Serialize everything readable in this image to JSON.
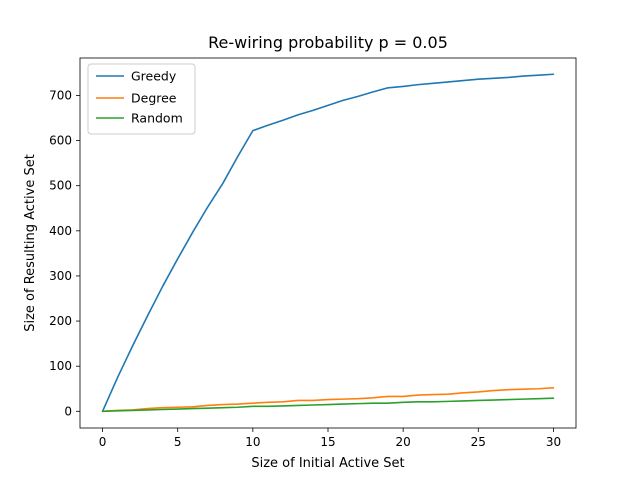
{
  "chart_data": {
    "type": "line",
    "title": "Re-wiring probability p = 0.05",
    "xlabel": "Size of Initial Active Set",
    "ylabel": "Size of Resulting Active Set",
    "xlim": [
      -1.5,
      31.5
    ],
    "ylim": [
      -37,
      783
    ],
    "xticks": [
      0,
      5,
      10,
      15,
      20,
      25,
      30
    ],
    "yticks": [
      0,
      100,
      200,
      300,
      400,
      500,
      600,
      700
    ],
    "grid": false,
    "legend_position": "top-left",
    "x": [
      0,
      1,
      2,
      3,
      4,
      5,
      6,
      7,
      8,
      9,
      10,
      11,
      12,
      13,
      14,
      15,
      16,
      17,
      18,
      19,
      20,
      21,
      22,
      23,
      24,
      25,
      26,
      27,
      28,
      29,
      30
    ],
    "series": [
      {
        "name": "Greedy",
        "color": "#1f77b4",
        "values": [
          0,
          75,
          145,
          212,
          277,
          338,
          397,
          453,
          505,
          565,
          622,
          634,
          645,
          657,
          667,
          678,
          689,
          698,
          708,
          717,
          720,
          724,
          727,
          730,
          733,
          736,
          738,
          740,
          743,
          745,
          747
        ]
      },
      {
        "name": "Degree",
        "color": "#ff7f0e",
        "values": [
          0,
          2,
          3,
          6,
          8,
          9,
          10,
          13,
          15,
          16,
          18,
          20,
          21,
          24,
          24,
          26,
          27,
          28,
          30,
          33,
          33,
          36,
          37,
          38,
          41,
          43,
          46,
          48,
          49,
          50,
          52
        ]
      },
      {
        "name": "Random",
        "color": "#2ca02c",
        "values": [
          0,
          1,
          2,
          3,
          4,
          5,
          6,
          7,
          8,
          9,
          11,
          11,
          12,
          13,
          14,
          15,
          16,
          17,
          18,
          18,
          20,
          21,
          21,
          22,
          23,
          24,
          25,
          26,
          27,
          28,
          29
        ]
      }
    ]
  }
}
